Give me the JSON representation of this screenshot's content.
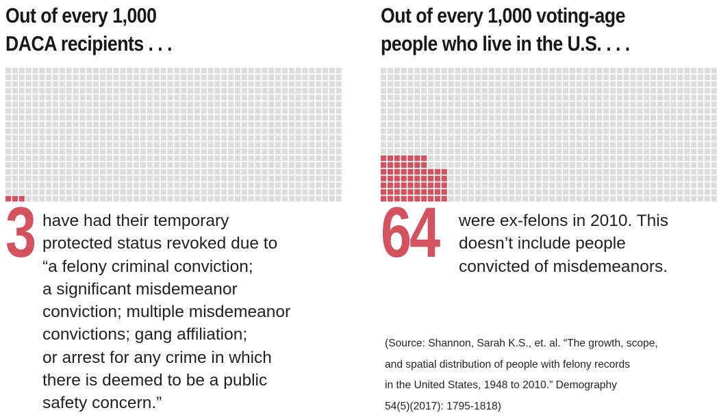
{
  "chart_data": [
    {
      "type": "waffle",
      "title_lines": [
        "Out of every 1,000",
        "DACA recipients . . ."
      ],
      "total": 1000,
      "highlighted": 3,
      "number_label": "3",
      "description_lines": [
        "have had their temporary",
        "protected status revoked due to",
        "“a felony criminal conviction;",
        "a significant misdemeanor",
        "conviction; multiple misdemeanor",
        "convictions; gang affiliation;",
        "or arrest for any crime in which",
        "there is deemed to be a public",
        "safety concern.”"
      ]
    },
    {
      "type": "waffle",
      "title_lines": [
        "Out of every 1,000 voting-age",
        "people who live in the U.S. . . ."
      ],
      "total": 1000,
      "highlighted": 64,
      "number_label": "64",
      "description_lines": [
        "were ex-felons in 2010. This",
        "doesn’t include people",
        "convicted of misdemeanors."
      ]
    }
  ],
  "source_lines": [
    "(Source: Shannon, Sarah K.S., et. al.  “The growth, scope,",
    "and spatial distribution of people with felony records",
    "in the United States, 1948 to 2010.”  Demography",
    "54(5)(2017): 1795-1818)"
  ],
  "colors": {
    "highlight": "#d4515e",
    "empty_square": "#dcdcdc",
    "text": "#231f20"
  }
}
